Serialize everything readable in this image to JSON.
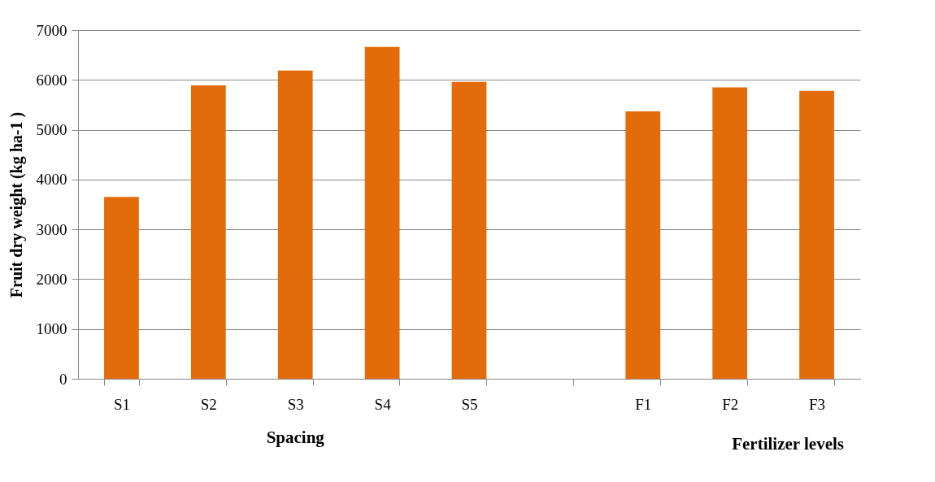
{
  "chart_data": {
    "type": "bar",
    "ylabel": "Fruit dry weight (kg ha-1 )",
    "xlabel": "Spacing",
    "annotations": [
      "Fertilizer levels"
    ],
    "categories": [
      "S1",
      "S2",
      "S3",
      "S4",
      "S5",
      null,
      "F1",
      "F2",
      "F3"
    ],
    "values": [
      3650,
      5890,
      6190,
      6660,
      5960,
      null,
      5370,
      5850,
      5780
    ],
    "color": "#e36c0a",
    "ylim": [
      0,
      7000
    ],
    "yticks": [
      0,
      1000,
      2000,
      3000,
      4000,
      5000,
      6000,
      7000
    ],
    "grid": "y"
  }
}
